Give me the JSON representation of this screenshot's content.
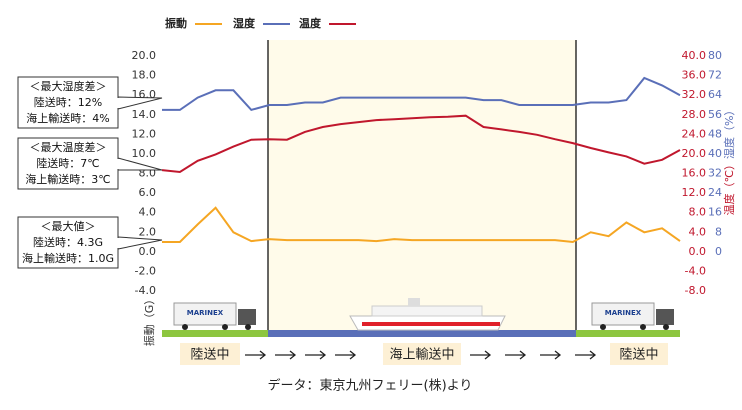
{
  "chart_data": {
    "type": "line",
    "legend": "top",
    "series": [
      {
        "name": "振動",
        "color": "#f5a623",
        "values": [
          1.0,
          1.0,
          2.8,
          4.5,
          2.0,
          1.1,
          1.3,
          1.2,
          1.2,
          1.2,
          1.2,
          1.2,
          1.1,
          1.3,
          1.2,
          1.2,
          1.2,
          1.2,
          1.2,
          1.2,
          1.2,
          1.2,
          1.2,
          1.0,
          2.0,
          1.6,
          3.0,
          2.0,
          2.4,
          1.1
        ]
      },
      {
        "name": "湿度",
        "color": "#5a6fb8",
        "axis": "y3",
        "values": [
          58,
          58,
          63,
          66,
          66,
          58,
          60,
          60,
          61,
          61,
          63,
          63,
          63,
          63,
          63,
          63,
          63,
          63,
          62,
          62,
          60,
          60,
          60,
          60,
          61,
          61,
          62,
          71,
          68,
          64
        ]
      },
      {
        "name": "温度",
        "color": "#c0172d",
        "axis": "y2",
        "values": [
          16.7,
          16.3,
          18.6,
          19.9,
          21.5,
          22.9,
          23.0,
          22.9,
          24.5,
          25.5,
          26.1,
          26.5,
          26.9,
          27.1,
          27.3,
          27.5,
          27.6,
          27.8,
          25.5,
          25.0,
          24.5,
          23.9,
          23.0,
          22.2,
          21.2,
          20.3,
          19.5,
          18.0,
          18.8,
          20.8
        ]
      }
    ],
    "ylabel": "振動（G）",
    "y2label": "温度（℃）",
    "y3label": "湿度（%）",
    "ylim": [
      -4,
      20
    ],
    "yticks": [
      {
        "value": 20,
        "label": "20.0"
      },
      {
        "value": 18,
        "label": "18.0"
      },
      {
        "value": 16,
        "label": "16.0"
      },
      {
        "value": 14,
        "label": "14.0"
      },
      {
        "value": 12,
        "label": "12.0"
      },
      {
        "value": 10,
        "label": "10.0"
      },
      {
        "value": 8,
        "label": "8.0"
      },
      {
        "value": 6,
        "label": "6.0"
      },
      {
        "value": 4,
        "label": "4.0"
      },
      {
        "value": 2,
        "label": "2.0"
      },
      {
        "value": 0,
        "label": "0.0"
      },
      {
        "value": -2,
        "label": "-2.0"
      },
      {
        "value": -4,
        "label": "-4.0"
      }
    ],
    "y2lim": [
      -8,
      40
    ],
    "y2ticks": [
      {
        "value": 40,
        "label": "40.0"
      },
      {
        "value": 36,
        "label": "36.0"
      },
      {
        "value": 32,
        "label": "32.0"
      },
      {
        "value": 28,
        "label": "28.0"
      },
      {
        "value": 24,
        "label": "24.0"
      },
      {
        "value": 20,
        "label": "20.0"
      },
      {
        "value": 16,
        "label": "16.0"
      },
      {
        "value": 12,
        "label": "12.0"
      },
      {
        "value": 8,
        "label": "8.0"
      },
      {
        "value": 4,
        "label": "4.0"
      },
      {
        "value": 0,
        "label": "0.0"
      },
      {
        "value": -4,
        "label": "-4.0"
      },
      {
        "value": -8,
        "label": "-8.0"
      }
    ],
    "y3lim": [
      -16,
      80
    ],
    "y3ticks": [
      80,
      72,
      64,
      56,
      48,
      40,
      32,
      24,
      16,
      8,
      0
    ],
    "annotations": [
      {
        "lines": [
          "＜最大湿度差＞",
          "陸送時：12%",
          "海上輸送時：4%"
        ]
      },
      {
        "lines": [
          "＜最大温度差＞",
          "陸送時：7℃",
          "海上輸送時：3℃"
        ]
      },
      {
        "lines": [
          "＜最大値＞",
          "陸送時：4.3G",
          "海上輸送時：1.0G"
        ]
      }
    ],
    "phases": [
      "陸送中",
      "海上輸送中",
      "陸送中"
    ],
    "truck_label": "MARINEX",
    "source": "データ：東京九州フェリー(株)より"
  }
}
